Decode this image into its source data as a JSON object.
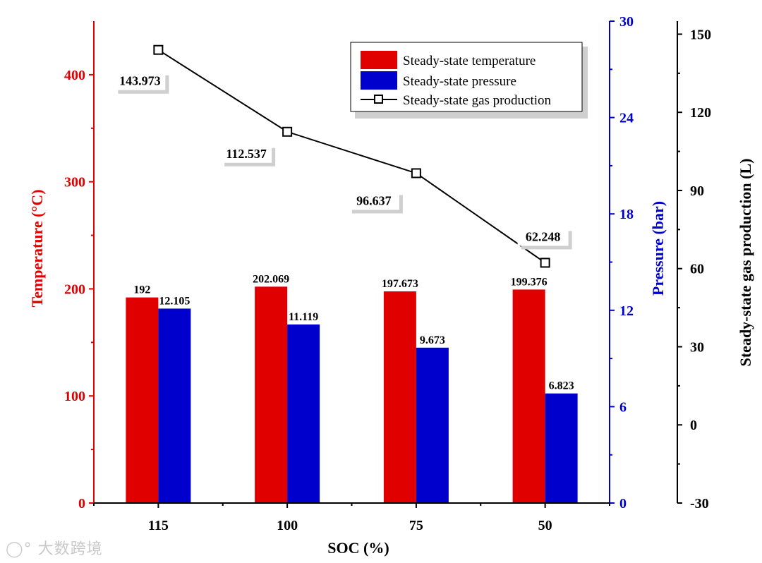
{
  "chart_data": {
    "type": "bar",
    "categories": [
      "115",
      "100",
      "75",
      "50"
    ],
    "xlabel": "SOC (%)",
    "series": [
      {
        "name": "Steady-state temperature",
        "kind": "bar",
        "axis": "temperature",
        "color": "#e00000",
        "values": [
          192,
          202.069,
          197.673,
          199.376
        ],
        "labels": [
          "192",
          "202.069",
          "197.673",
          "199.376"
        ]
      },
      {
        "name": "Steady-state pressure",
        "kind": "bar",
        "axis": "pressure",
        "color": "#0000cc",
        "values": [
          12.105,
          11.119,
          9.673,
          6.823
        ],
        "labels": [
          "12.105",
          "11.119",
          "9.673",
          "6.823"
        ]
      },
      {
        "name": "Steady-state gas production",
        "kind": "line",
        "axis": "gas",
        "color": "#000000",
        "values": [
          143.973,
          112.537,
          96.637,
          62.248
        ],
        "labels": [
          "143.973",
          "112.537",
          "96.637",
          "62.248"
        ]
      }
    ],
    "axes": {
      "temperature": {
        "label": "Temperature (°C)",
        "range": [
          0,
          450
        ],
        "ticks": [
          "0",
          "100",
          "200",
          "300",
          "400"
        ],
        "color": "#e00000"
      },
      "pressure": {
        "label": "Pressure (bar)",
        "range": [
          0,
          30
        ],
        "ticks": [
          "0",
          "6",
          "12",
          "18",
          "24",
          "30"
        ],
        "color": "#0000cc"
      },
      "gas": {
        "label": "Steady-state gas production (L)",
        "range": [
          -30,
          155
        ],
        "ticks": [
          "-30",
          "0",
          "30",
          "60",
          "90",
          "120",
          "150"
        ],
        "color": "#000000"
      }
    },
    "legend_position": "top-right",
    "watermark": "大数跨境"
  }
}
